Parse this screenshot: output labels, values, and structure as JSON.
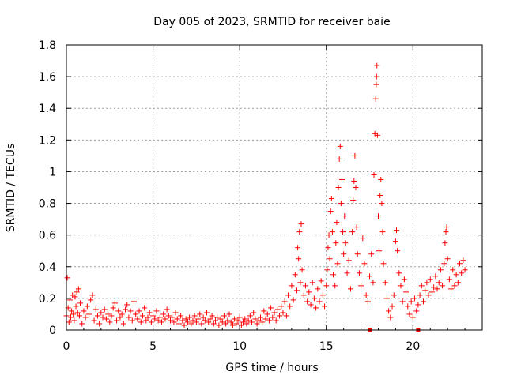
{
  "chart_data": {
    "type": "scatter",
    "title": "Day 005 of 2023, SRMTID for receiver baie",
    "xlabel": "GPS time / hours",
    "ylabel": "SRMTID / TECUs",
    "xlim": [
      0,
      24
    ],
    "ylim": [
      0,
      1.8
    ],
    "x_ticks": [
      "0",
      "5",
      "10",
      "15",
      "20"
    ],
    "y_ticks": [
      "0",
      "0.2",
      "0.4",
      "0.6",
      "0.8",
      "1",
      "1.2",
      "1.4",
      "1.6",
      "1.8"
    ],
    "grid": true,
    "marker": "+",
    "color": "#ff0000",
    "series": [
      {
        "name": "SRMTID",
        "points": [
          [
            0.0,
            0.09
          ],
          [
            0.05,
            0.33
          ],
          [
            0.1,
            0.14
          ],
          [
            0.15,
            0.05
          ],
          [
            0.2,
            0.19
          ],
          [
            0.25,
            0.08
          ],
          [
            0.3,
            0.12
          ],
          [
            0.35,
            0.22
          ],
          [
            0.4,
            0.1
          ],
          [
            0.45,
            0.06
          ],
          [
            0.5,
            0.21
          ],
          [
            0.55,
            0.15
          ],
          [
            0.6,
            0.24
          ],
          [
            0.65,
            0.11
          ],
          [
            0.7,
            0.26
          ],
          [
            0.75,
            0.09
          ],
          [
            0.8,
            0.17
          ],
          [
            0.9,
            0.04
          ],
          [
            1.0,
            0.12
          ],
          [
            1.1,
            0.08
          ],
          [
            1.2,
            0.15
          ],
          [
            1.3,
            0.1
          ],
          [
            1.4,
            0.19
          ],
          [
            1.5,
            0.22
          ],
          [
            1.6,
            0.06
          ],
          [
            1.7,
            0.13
          ],
          [
            1.8,
            0.09
          ],
          [
            1.9,
            0.04
          ],
          [
            2.0,
            0.11
          ],
          [
            2.1,
            0.08
          ],
          [
            2.2,
            0.13
          ],
          [
            2.3,
            0.07
          ],
          [
            2.4,
            0.1
          ],
          [
            2.5,
            0.05
          ],
          [
            2.6,
            0.09
          ],
          [
            2.7,
            0.14
          ],
          [
            2.8,
            0.17
          ],
          [
            2.9,
            0.06
          ],
          [
            3.0,
            0.12
          ],
          [
            3.1,
            0.08
          ],
          [
            3.2,
            0.1
          ],
          [
            3.3,
            0.04
          ],
          [
            3.4,
            0.13
          ],
          [
            3.5,
            0.16
          ],
          [
            3.6,
            0.08
          ],
          [
            3.7,
            0.12
          ],
          [
            3.8,
            0.06
          ],
          [
            3.9,
            0.18
          ],
          [
            4.0,
            0.1
          ],
          [
            4.1,
            0.07
          ],
          [
            4.2,
            0.12
          ],
          [
            4.3,
            0.05
          ],
          [
            4.4,
            0.09
          ],
          [
            4.5,
            0.14
          ],
          [
            4.6,
            0.06
          ],
          [
            4.7,
            0.08
          ],
          [
            4.8,
            0.11
          ],
          [
            4.9,
            0.05
          ],
          [
            5.0,
            0.09
          ],
          [
            5.1,
            0.07
          ],
          [
            5.2,
            0.12
          ],
          [
            5.3,
            0.06
          ],
          [
            5.4,
            0.08
          ],
          [
            5.5,
            0.05
          ],
          [
            5.6,
            0.1
          ],
          [
            5.7,
            0.07
          ],
          [
            5.8,
            0.13
          ],
          [
            5.9,
            0.09
          ],
          [
            6.0,
            0.06
          ],
          [
            6.1,
            0.08
          ],
          [
            6.2,
            0.05
          ],
          [
            6.3,
            0.11
          ],
          [
            6.4,
            0.07
          ],
          [
            6.5,
            0.04
          ],
          [
            6.6,
            0.09
          ],
          [
            6.7,
            0.06
          ],
          [
            6.8,
            0.03
          ],
          [
            6.9,
            0.07
          ],
          [
            7.0,
            0.05
          ],
          [
            7.1,
            0.08
          ],
          [
            7.2,
            0.04
          ],
          [
            7.3,
            0.06
          ],
          [
            7.4,
            0.09
          ],
          [
            7.5,
            0.05
          ],
          [
            7.6,
            0.07
          ],
          [
            7.7,
            0.1
          ],
          [
            7.8,
            0.04
          ],
          [
            7.9,
            0.08
          ],
          [
            8.0,
            0.06
          ],
          [
            8.1,
            0.11
          ],
          [
            8.2,
            0.05
          ],
          [
            8.3,
            0.07
          ],
          [
            8.4,
            0.09
          ],
          [
            8.5,
            0.04
          ],
          [
            8.6,
            0.06
          ],
          [
            8.7,
            0.08
          ],
          [
            8.8,
            0.03
          ],
          [
            8.9,
            0.07
          ],
          [
            9.0,
            0.05
          ],
          [
            9.1,
            0.09
          ],
          [
            9.2,
            0.04
          ],
          [
            9.3,
            0.06
          ],
          [
            9.4,
            0.1
          ],
          [
            9.5,
            0.05
          ],
          [
            9.6,
            0.03
          ],
          [
            9.7,
            0.07
          ],
          [
            9.8,
            0.04
          ],
          [
            9.9,
            0.06
          ],
          [
            10.0,
            0.08
          ],
          [
            10.1,
            0.03
          ],
          [
            10.2,
            0.05
          ],
          [
            10.3,
            0.07
          ],
          [
            10.4,
            0.04
          ],
          [
            10.5,
            0.06
          ],
          [
            10.6,
            0.09
          ],
          [
            10.7,
            0.05
          ],
          [
            10.8,
            0.11
          ],
          [
            10.9,
            0.07
          ],
          [
            11.0,
            0.04
          ],
          [
            11.1,
            0.06
          ],
          [
            11.2,
            0.08
          ],
          [
            11.3,
            0.05
          ],
          [
            11.4,
            0.12
          ],
          [
            11.5,
            0.07
          ],
          [
            11.6,
            0.1
          ],
          [
            11.7,
            0.06
          ],
          [
            11.8,
            0.14
          ],
          [
            11.9,
            0.08
          ],
          [
            12.0,
            0.11
          ],
          [
            12.1,
            0.06
          ],
          [
            12.2,
            0.13
          ],
          [
            12.3,
            0.09
          ],
          [
            12.4,
            0.15
          ],
          [
            12.5,
            0.11
          ],
          [
            12.6,
            0.18
          ],
          [
            12.7,
            0.09
          ],
          [
            12.8,
            0.22
          ],
          [
            12.9,
            0.15
          ],
          [
            13.0,
            0.28
          ],
          [
            13.1,
            0.19
          ],
          [
            13.2,
            0.35
          ],
          [
            13.3,
            0.25
          ],
          [
            13.35,
            0.52
          ],
          [
            13.4,
            0.45
          ],
          [
            13.45,
            0.62
          ],
          [
            13.5,
            0.3
          ],
          [
            13.55,
            0.67
          ],
          [
            13.6,
            0.38
          ],
          [
            13.7,
            0.22
          ],
          [
            13.8,
            0.28
          ],
          [
            13.9,
            0.18
          ],
          [
            14.0,
            0.24
          ],
          [
            14.1,
            0.16
          ],
          [
            14.2,
            0.3
          ],
          [
            14.3,
            0.2
          ],
          [
            14.4,
            0.14
          ],
          [
            14.5,
            0.26
          ],
          [
            14.6,
            0.18
          ],
          [
            14.7,
            0.31
          ],
          [
            14.8,
            0.22
          ],
          [
            14.9,
            0.15
          ],
          [
            15.0,
            0.28
          ],
          [
            15.05,
            0.38
          ],
          [
            15.1,
            0.52
          ],
          [
            15.15,
            0.6
          ],
          [
            15.2,
            0.45
          ],
          [
            15.25,
            0.75
          ],
          [
            15.3,
            0.83
          ],
          [
            15.35,
            0.62
          ],
          [
            15.4,
            0.35
          ],
          [
            15.5,
            0.28
          ],
          [
            15.55,
            0.55
          ],
          [
            15.6,
            0.68
          ],
          [
            15.65,
            0.42
          ],
          [
            15.7,
            0.9
          ],
          [
            15.75,
            1.08
          ],
          [
            15.8,
            1.16
          ],
          [
            15.85,
            0.8
          ],
          [
            15.9,
            0.95
          ],
          [
            15.95,
            0.62
          ],
          [
            16.0,
            0.48
          ],
          [
            16.05,
            0.72
          ],
          [
            16.1,
            0.55
          ],
          [
            16.2,
            0.36
          ],
          [
            16.3,
            0.44
          ],
          [
            16.4,
            0.26
          ],
          [
            16.5,
            0.62
          ],
          [
            16.55,
            0.82
          ],
          [
            16.6,
            0.94
          ],
          [
            16.65,
            1.1
          ],
          [
            16.7,
            0.9
          ],
          [
            16.75,
            0.65
          ],
          [
            16.8,
            0.48
          ],
          [
            16.9,
            0.36
          ],
          [
            17.0,
            0.28
          ],
          [
            17.1,
            0.58
          ],
          [
            17.2,
            0.42
          ],
          [
            17.3,
            0.22
          ],
          [
            17.4,
            0.18
          ],
          [
            17.5,
            0.34
          ],
          [
            17.6,
            0.48
          ],
          [
            17.7,
            0.3
          ],
          [
            17.75,
            0.98
          ],
          [
            17.8,
            1.24
          ],
          [
            17.85,
            1.46
          ],
          [
            17.88,
            1.55
          ],
          [
            17.9,
            1.6
          ],
          [
            17.92,
            1.67
          ],
          [
            17.95,
            1.23
          ],
          [
            18.0,
            0.72
          ],
          [
            18.05,
            0.5
          ],
          [
            18.1,
            0.85
          ],
          [
            18.15,
            0.95
          ],
          [
            18.2,
            0.8
          ],
          [
            18.25,
            0.62
          ],
          [
            18.3,
            0.42
          ],
          [
            18.4,
            0.3
          ],
          [
            18.5,
            0.2
          ],
          [
            18.6,
            0.12
          ],
          [
            18.7,
            0.08
          ],
          [
            18.8,
            0.15
          ],
          [
            18.9,
            0.22
          ],
          [
            19.0,
            0.56
          ],
          [
            19.05,
            0.63
          ],
          [
            19.1,
            0.5
          ],
          [
            19.2,
            0.36
          ],
          [
            19.3,
            0.28
          ],
          [
            19.4,
            0.18
          ],
          [
            19.5,
            0.32
          ],
          [
            19.6,
            0.24
          ],
          [
            19.7,
            0.15
          ],
          [
            19.8,
            0.1
          ],
          [
            19.9,
            0.18
          ],
          [
            20.0,
            0.08
          ],
          [
            20.1,
            0.2
          ],
          [
            20.2,
            0.12
          ],
          [
            20.3,
            0.16
          ],
          [
            20.4,
            0.22
          ],
          [
            20.5,
            0.28
          ],
          [
            20.6,
            0.18
          ],
          [
            20.7,
            0.25
          ],
          [
            20.8,
            0.3
          ],
          [
            20.9,
            0.22
          ],
          [
            21.0,
            0.32
          ],
          [
            21.1,
            0.24
          ],
          [
            21.2,
            0.27
          ],
          [
            21.3,
            0.34
          ],
          [
            21.4,
            0.26
          ],
          [
            21.5,
            0.3
          ],
          [
            21.6,
            0.38
          ],
          [
            21.7,
            0.28
          ],
          [
            21.8,
            0.42
          ],
          [
            21.85,
            0.55
          ],
          [
            21.9,
            0.62
          ],
          [
            21.95,
            0.65
          ],
          [
            22.0,
            0.45
          ],
          [
            22.1,
            0.32
          ],
          [
            22.2,
            0.26
          ],
          [
            22.3,
            0.38
          ],
          [
            22.4,
            0.28
          ],
          [
            22.5,
            0.35
          ],
          [
            22.6,
            0.3
          ],
          [
            22.7,
            0.42
          ],
          [
            22.8,
            0.36
          ],
          [
            22.9,
            0.44
          ],
          [
            23.0,
            0.38
          ]
        ]
      }
    ],
    "markers": [
      {
        "x": 17.5,
        "y": 0
      },
      {
        "x": 20.3,
        "y": 0
      }
    ]
  }
}
